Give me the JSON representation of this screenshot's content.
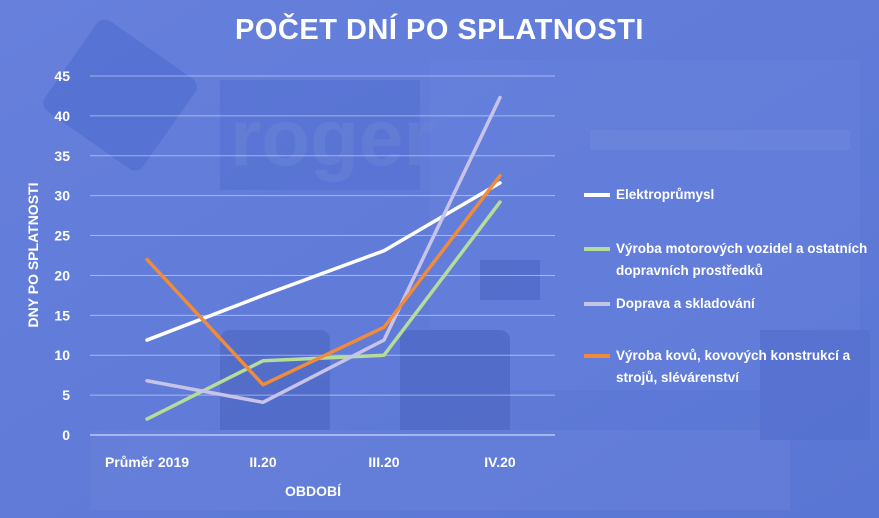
{
  "title": "POČET DNÍ PO SPLATNOSTI",
  "chart_data": {
    "type": "line",
    "categories": [
      "Průměr 2019",
      "II.20",
      "III.20",
      "IV.20"
    ],
    "xlabel": "OBDOBÍ",
    "ylabel": "DNY PO SPLATNOSTI",
    "ylim": [
      0,
      45
    ],
    "yticks": [
      0,
      5,
      10,
      15,
      20,
      25,
      30,
      35,
      40,
      45
    ],
    "grid": true,
    "legend_position": "right",
    "series": [
      {
        "name": "Elektroprůmysl",
        "color": "#ffffff",
        "values": [
          11.9,
          17.5,
          23.1,
          31.6
        ]
      },
      {
        "name": "Výroba motorových vozidel a ostatních dopravních prostředků",
        "color": "#b5dc98",
        "values": [
          2.0,
          9.3,
          10.0,
          29.2
        ]
      },
      {
        "name": "Doprava a skladování",
        "color": "#c8c3ea",
        "values": [
          6.8,
          4.1,
          11.9,
          42.3
        ]
      },
      {
        "name": "Výroba kovů, kovových konstrukcí a strojů, slévárenství",
        "color": "#f08b3c",
        "values": [
          22.0,
          6.3,
          13.5,
          32.5
        ]
      }
    ]
  }
}
